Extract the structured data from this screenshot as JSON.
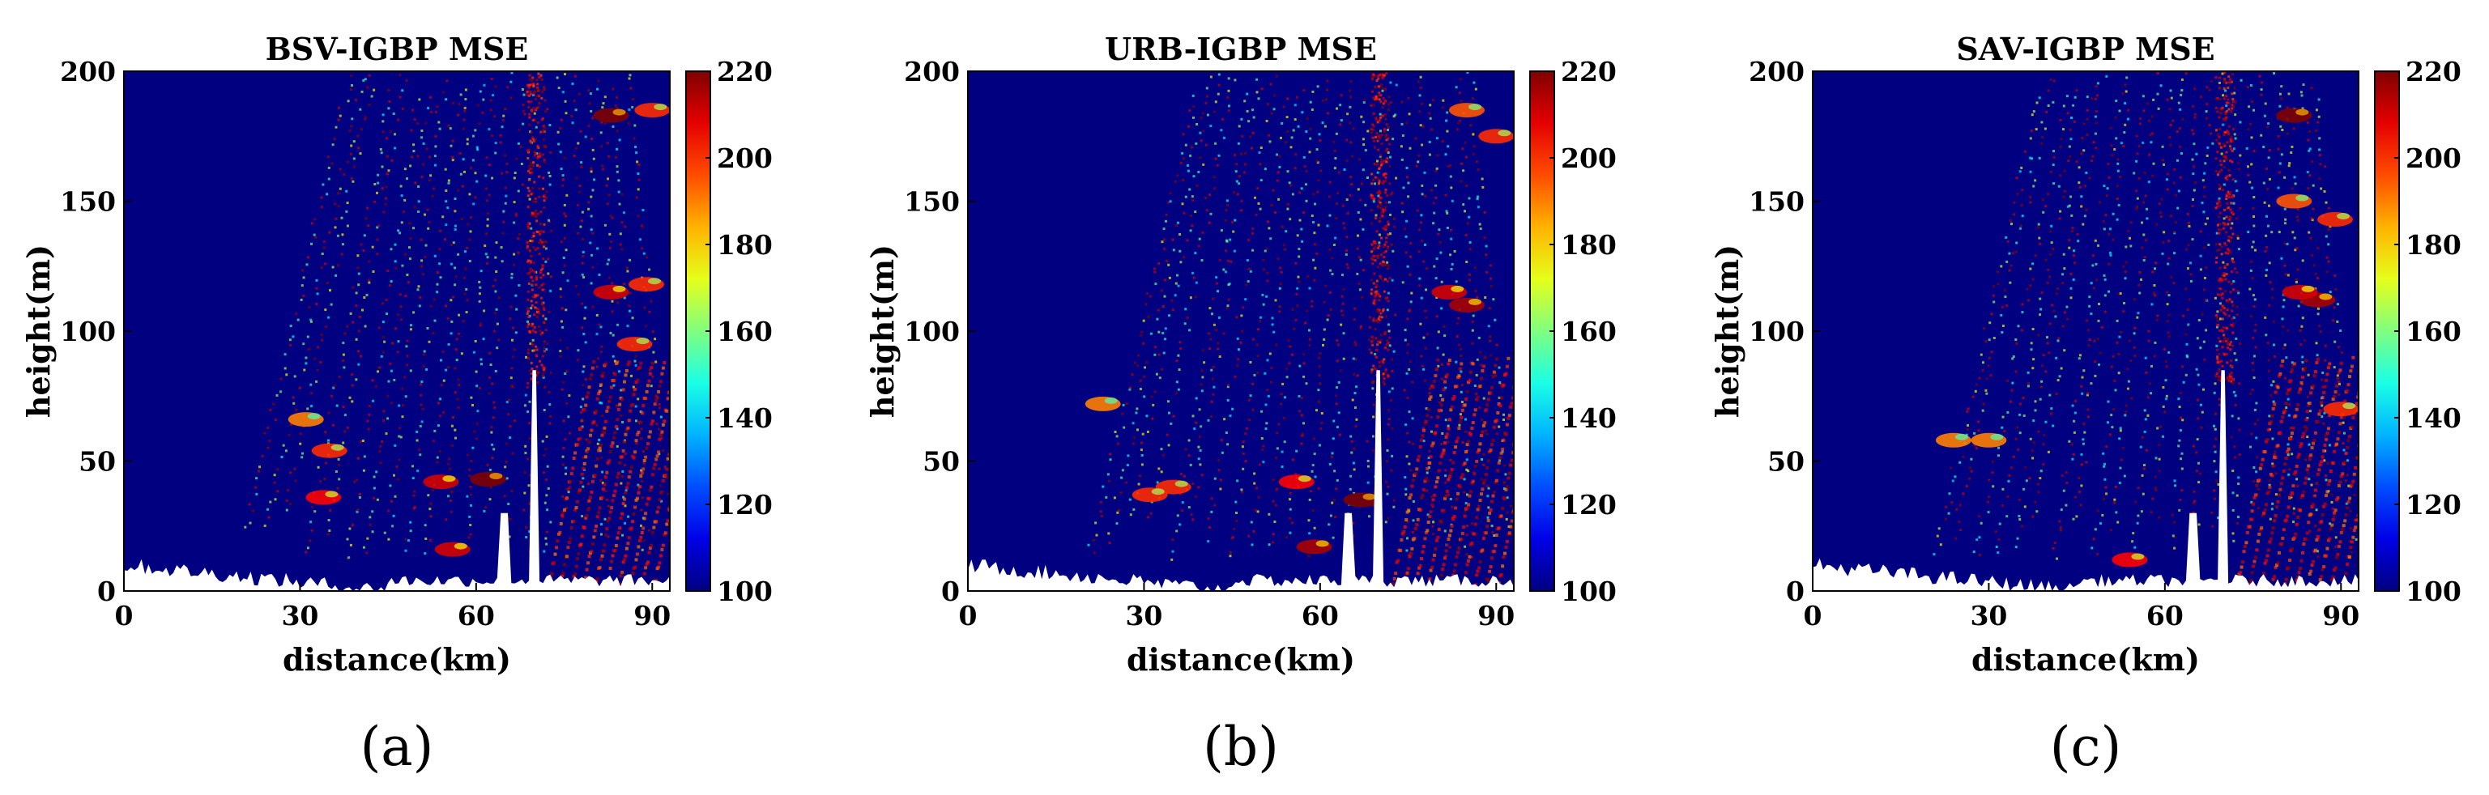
{
  "chart_data": [
    {
      "type": "heatmap",
      "title": "BSV-IGBP MSE",
      "xlabel": "distance(km)",
      "ylabel": "height(m)",
      "panel_label": "(a)",
      "xlim": [
        0,
        93
      ],
      "ylim": [
        0,
        200
      ],
      "xticks": [
        "0",
        "30",
        "60",
        "90"
      ],
      "yticks": [
        "0",
        "50",
        "100",
        "150",
        "200"
      ],
      "colorbar": {
        "range": [
          100,
          220
        ],
        "ticks": [
          "100",
          "120",
          "140",
          "160",
          "180",
          "200",
          "220"
        ],
        "colormap": "jet"
      },
      "background_value": 100,
      "hotspots": [
        {
          "x": 83,
          "y": 183,
          "value": 220
        },
        {
          "x": 83,
          "y": 115,
          "value": 210
        },
        {
          "x": 89,
          "y": 118,
          "value": 200
        },
        {
          "x": 62,
          "y": 43,
          "value": 220
        },
        {
          "x": 54,
          "y": 42,
          "value": 210
        },
        {
          "x": 34,
          "y": 36,
          "value": 205
        },
        {
          "x": 35,
          "y": 54,
          "value": 200
        },
        {
          "x": 31,
          "y": 66,
          "value": 190
        },
        {
          "x": 56,
          "y": 16,
          "value": 210
        },
        {
          "x": 90,
          "y": 185,
          "value": 200
        },
        {
          "x": 87,
          "y": 95,
          "value": 200
        }
      ]
    },
    {
      "type": "heatmap",
      "title": "URB-IGBP MSE",
      "xlabel": "distance(km)",
      "ylabel": "height(m)",
      "panel_label": "(b)",
      "xlim": [
        0,
        93
      ],
      "ylim": [
        0,
        200
      ],
      "xticks": [
        "0",
        "30",
        "60",
        "90"
      ],
      "yticks": [
        "0",
        "50",
        "100",
        "150",
        "200"
      ],
      "colorbar": {
        "range": [
          100,
          220
        ],
        "ticks": [
          "100",
          "120",
          "140",
          "160",
          "180",
          "200",
          "220"
        ],
        "colormap": "jet"
      },
      "background_value": 100,
      "hotspots": [
        {
          "x": 67,
          "y": 35,
          "value": 220
        },
        {
          "x": 59,
          "y": 17,
          "value": 215
        },
        {
          "x": 85,
          "y": 110,
          "value": 215
        },
        {
          "x": 82,
          "y": 115,
          "value": 210
        },
        {
          "x": 56,
          "y": 42,
          "value": 205
        },
        {
          "x": 35,
          "y": 40,
          "value": 200
        },
        {
          "x": 31,
          "y": 37,
          "value": 200
        },
        {
          "x": 23,
          "y": 72,
          "value": 190
        },
        {
          "x": 90,
          "y": 175,
          "value": 200
        },
        {
          "x": 85,
          "y": 185,
          "value": 195
        }
      ]
    },
    {
      "type": "heatmap",
      "title": "SAV-IGBP MSE",
      "xlabel": "distance(km)",
      "ylabel": "height(m)",
      "panel_label": "(c)",
      "xlim": [
        0,
        93
      ],
      "ylim": [
        0,
        200
      ],
      "xticks": [
        "0",
        "30",
        "60",
        "90"
      ],
      "yticks": [
        "0",
        "50",
        "100",
        "150",
        "200"
      ],
      "colorbar": {
        "range": [
          100,
          220
        ],
        "ticks": [
          "100",
          "120",
          "140",
          "160",
          "180",
          "200",
          "220"
        ],
        "colormap": "jet"
      },
      "background_value": 100,
      "hotspots": [
        {
          "x": 82,
          "y": 183,
          "value": 220
        },
        {
          "x": 86,
          "y": 112,
          "value": 215
        },
        {
          "x": 83,
          "y": 115,
          "value": 210
        },
        {
          "x": 89,
          "y": 143,
          "value": 200
        },
        {
          "x": 90,
          "y": 70,
          "value": 200
        },
        {
          "x": 24,
          "y": 58,
          "value": 190
        },
        {
          "x": 30,
          "y": 58,
          "value": 190
        },
        {
          "x": 54,
          "y": 12,
          "value": 205
        },
        {
          "x": 82,
          "y": 150,
          "value": 195
        }
      ]
    }
  ]
}
